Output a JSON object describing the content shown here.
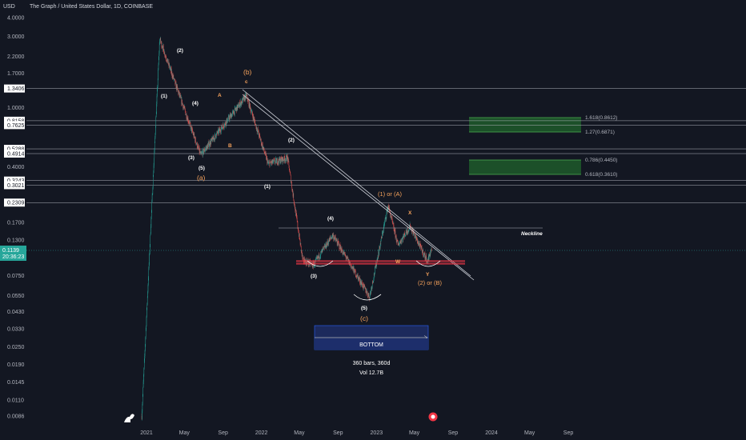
{
  "header": {
    "currency": "USD",
    "title": "The Graph / United States Dollar, 1D, COINBASE"
  },
  "price_axis": {
    "ticks": [
      "4.0000",
      "3.0000",
      "2.2000",
      "1.7000",
      "1.0000",
      "0.4000",
      "0.1700",
      "0.1300",
      "0.0750",
      "0.0550",
      "0.0430",
      "0.0330",
      "0.0250",
      "0.0190",
      "0.0145",
      "0.0110",
      "0.0086"
    ],
    "highlighted": [
      "1.3406",
      "0.8158",
      "0.7625",
      "0.5288",
      "0.4914",
      "0.3243",
      "0.3021",
      "0.2309"
    ],
    "current_price": "0.1139",
    "countdown": "20:36:23",
    "colors": {
      "current": "#26a69a",
      "highlight_bg": "#ffffff",
      "highlight_fg": "#131722"
    }
  },
  "time_axis": {
    "labels": [
      "2021",
      "May",
      "Sep",
      "2022",
      "May",
      "Sep",
      "2023",
      "May",
      "Sep",
      "2024",
      "May",
      "Sep"
    ]
  },
  "horizontal_levels": [
    "1.3406",
    "0.8158",
    "0.7625",
    "0.5288",
    "0.4914",
    "0.3243",
    "0.3021",
    "0.2309"
  ],
  "wave_labels": {
    "white": [
      "(1)",
      "(2)",
      "(3)",
      "(4)",
      "(5)",
      "(1)",
      "(2)",
      "(3)",
      "(4)",
      "(5)",
      "A",
      "B",
      "X",
      "W",
      "Y"
    ],
    "orange": [
      "(b)",
      "c",
      "(a)",
      "(c)",
      "(1) or (A)",
      "(2) or (B)"
    ]
  },
  "fib_levels": {
    "upper": [
      "1.618(0.8612)",
      "1.27(0.6871)"
    ],
    "lower": [
      "0.786(0.4450)",
      "0.618(0.3610)"
    ]
  },
  "neckline_label": "Neckline",
  "range_box": {
    "label": "BOTTOM",
    "stats_line1": "360 bars, 360d",
    "stats_line2": "Vol 12.7B"
  },
  "colors": {
    "background": "#131722",
    "up": "#26a69a",
    "down": "#ef5350",
    "orange": "#f7a35c",
    "fib_zone": "#1e5a2a",
    "support": "#f23645",
    "range_box": "#1c2a5c"
  },
  "chart_data": {
    "type": "candlestick",
    "title": "The Graph / United States Dollar, 1D, COINBASE",
    "y_scale": "log",
    "ylim": [
      0.0086,
      4.0
    ],
    "x_range": [
      "2020-12-17",
      "2024-10-01"
    ],
    "grid": false,
    "key_prices": [
      {
        "date": "2020-12-17",
        "price": 0.0086
      },
      {
        "date": "2021-02-12",
        "price": 2.88
      },
      {
        "date": "2021-04-10",
        "price": 1.3
      },
      {
        "date": "2021-06-22",
        "price": 0.48
      },
      {
        "date": "2021-11-14",
        "price": 1.2
      },
      {
        "date": "2022-01-22",
        "price": 0.42
      },
      {
        "date": "2022-03-25",
        "price": 0.46
      },
      {
        "date": "2022-05-12",
        "price": 0.095
      },
      {
        "date": "2022-06-15",
        "price": 0.088
      },
      {
        "date": "2022-08-15",
        "price": 0.14
      },
      {
        "date": "2022-12-10",
        "price": 0.054
      },
      {
        "date": "2023-02-07",
        "price": 0.22
      },
      {
        "date": "2023-03-10",
        "price": 0.12
      },
      {
        "date": "2023-04-18",
        "price": 0.16
      },
      {
        "date": "2023-06-12",
        "price": 0.093
      },
      {
        "date": "2023-06-25",
        "price": 0.1139
      }
    ]
  }
}
